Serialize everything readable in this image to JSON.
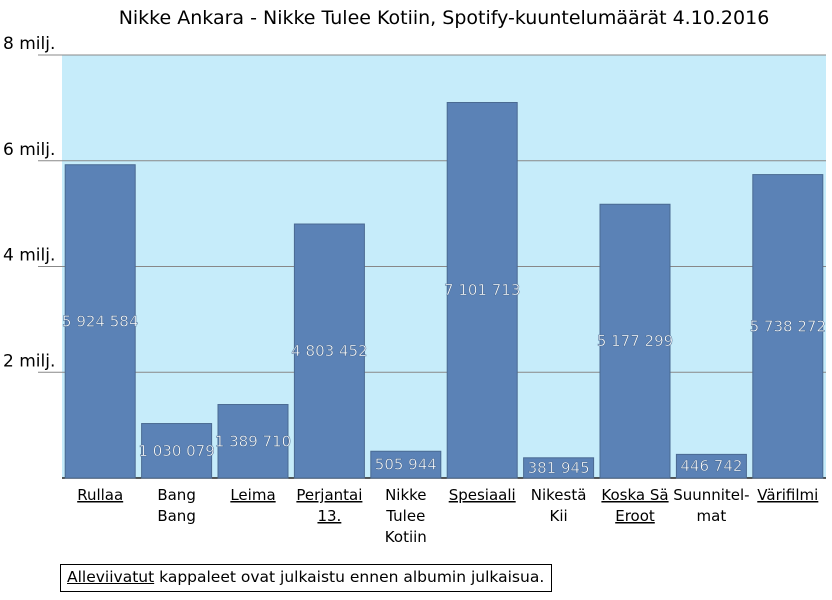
{
  "chart_data": {
    "type": "bar",
    "title": "Nikke Ankara - Nikke Tulee Kotiin, Spotify-kuuntelumäärät 4.10.2016",
    "ylim": [
      0,
      8000000
    ],
    "ytick_values": [
      2000000,
      4000000,
      6000000,
      8000000
    ],
    "ytick_labels": [
      "2 milj.",
      "4 milj.",
      "6 milj.",
      "8 milj."
    ],
    "grid": true,
    "categories": [
      {
        "lines": [
          "Rullaa"
        ],
        "underlined": true
      },
      {
        "lines": [
          "Bang",
          "Bang"
        ],
        "underlined": false
      },
      {
        "lines": [
          "Leima"
        ],
        "underlined": true
      },
      {
        "lines": [
          "Perjantai",
          "13."
        ],
        "underlined": true
      },
      {
        "lines": [
          "Nikke",
          "Tulee",
          "Kotiin"
        ],
        "underlined": false
      },
      {
        "lines": [
          "Spesiaali"
        ],
        "underlined": true
      },
      {
        "lines": [
          "Nikestä",
          "Kii"
        ],
        "underlined": false
      },
      {
        "lines": [
          "Koska Sä",
          "Eroot"
        ],
        "underlined": true
      },
      {
        "lines": [
          "Suunnitel-",
          "mat"
        ],
        "underlined": false
      },
      {
        "lines": [
          "Värifilmi"
        ],
        "underlined": true
      }
    ],
    "values": [
      5924584,
      1030079,
      1389710,
      4803452,
      505944,
      7101713,
      381945,
      5177299,
      446742,
      5738272
    ],
    "value_labels": [
      "5 924 584",
      "1 030 079",
      "1 389 710",
      "4 803 452",
      "505 944",
      "7 101 713",
      "381 945",
      "5 177 299",
      "446 742",
      "5 738 272"
    ],
    "colors": {
      "bar": "#5b82b6",
      "bar_edge": "#4a6a92",
      "plot_bg": "#c6ecfa",
      "grid": "#888888"
    }
  },
  "note": {
    "underlined": "Alleviivatut",
    "rest": " kappaleet ovat julkaistu ennen albumin julkaisua."
  }
}
